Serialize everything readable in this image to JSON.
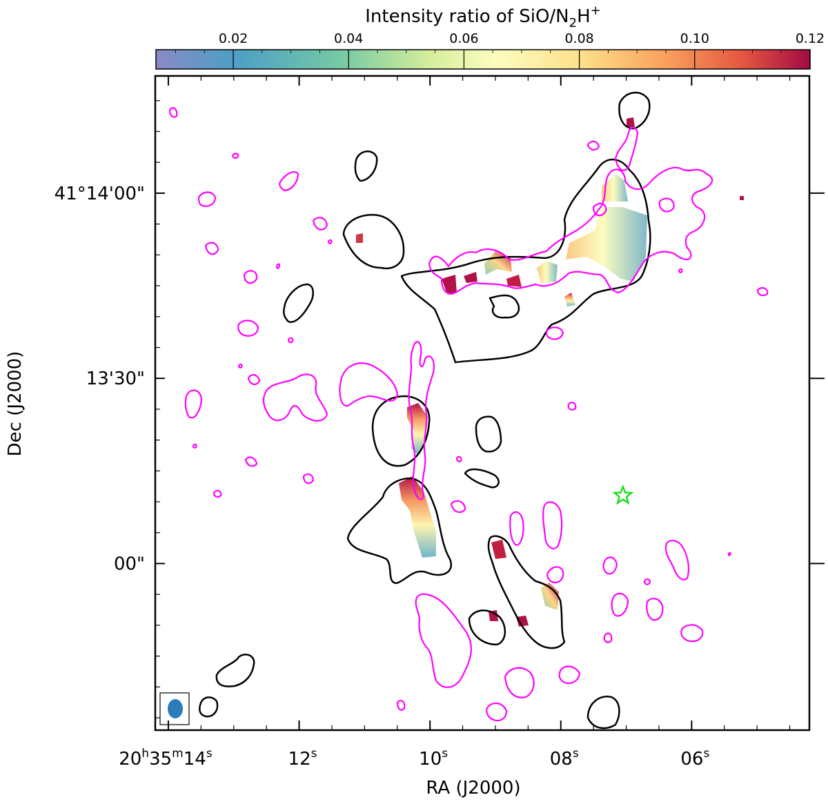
{
  "chart_data": {
    "type": "heatmap",
    "title": "",
    "colorbar": {
      "label": "Intensity ratio of SiO/N₂H⁺",
      "label_main": "Intensity ratio of SiO/N",
      "label_sub": "2",
      "label_tail": "H",
      "label_sup": "+",
      "range": [
        0.0066,
        0.12
      ],
      "ticks": [
        0.02,
        0.04,
        0.06,
        0.08,
        0.1,
        0.12
      ],
      "tick_labels": [
        "0.02",
        "0.04",
        "0.06",
        "0.08",
        "0.10",
        "0.12"
      ],
      "colormap": "Spectral_r",
      "placement": "top"
    },
    "xlabel": "RA (J2000)",
    "ylabel": "Dec (J2000)",
    "x_axis": {
      "unit": "seconds of RA (20h35m + s)",
      "range": [
        14.2,
        4.2
      ],
      "ticks": [
        14,
        12,
        10,
        8,
        6
      ],
      "tick_labels": [
        {
          "main": "20",
          "parts": [
            [
              "h",
              "35"
            ],
            [
              "m",
              "14"
            ],
            [
              "s",
              ""
            ]
          ]
        },
        {
          "main": "12",
          "parts": [
            [
              "s",
              ""
            ]
          ]
        },
        {
          "main": "10",
          "parts": [
            [
              "s",
              ""
            ]
          ]
        },
        {
          "main": "08",
          "parts": [
            [
              "s",
              ""
            ]
          ]
        },
        {
          "main": "06",
          "parts": [
            [
              "s",
              ""
            ]
          ]
        }
      ]
    },
    "y_axis": {
      "unit": "arcsec offset from 41°13'00\"",
      "range": [
        -27,
        79
      ],
      "ticks": [
        0,
        30,
        60
      ],
      "tick_labels": [
        "00\"",
        "13'30\"",
        "41°14'00\""
      ]
    },
    "marker": {
      "type": "star",
      "color": "#22dd22",
      "ra_s": 7.05,
      "dec_offset": 11
    },
    "beam": {
      "color": "#2b7bba"
    },
    "contours": {
      "black_color": "#000000",
      "magenta_color": "#ff00ff"
    }
  }
}
